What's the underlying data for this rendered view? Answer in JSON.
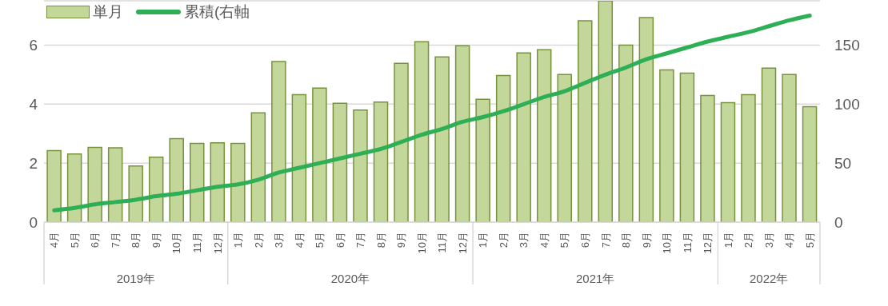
{
  "chart_data": {
    "type": "bar",
    "categories": [
      "4月",
      "5月",
      "6月",
      "7月",
      "8月",
      "9月",
      "10月",
      "11月",
      "12月",
      "1月",
      "2月",
      "3月",
      "4月",
      "5月",
      "6月",
      "7月",
      "8月",
      "9月",
      "10月",
      "11月",
      "12月",
      "1月",
      "2月",
      "3月",
      "4月",
      "5月",
      "6月",
      "7月",
      "8月",
      "9月",
      "10月",
      "11月",
      "12月",
      "1月",
      "2月",
      "3月",
      "4月",
      "5月"
    ],
    "series": [
      {
        "name": "単月",
        "color": "#c4d79b",
        "values": [
          2.42,
          2.31,
          2.53,
          2.52,
          1.9,
          2.2,
          2.83,
          2.67,
          2.69,
          2.67,
          3.7,
          5.44,
          4.32,
          4.54,
          4.03,
          3.8,
          4.07,
          5.38,
          6.11,
          5.6,
          5.98,
          4.16,
          4.97,
          5.73,
          5.84,
          5.0,
          6.82,
          7.5,
          6.0,
          6.93,
          5.16,
          5.05,
          4.29,
          4.05,
          4.32,
          5.22,
          5.0,
          3.91
        ]
      },
      {
        "name": "累積(右軸",
        "type": "line",
        "axis": "y2",
        "color": "#2eaf55",
        "values": [
          10,
          12,
          15,
          17,
          19,
          22,
          24,
          27,
          30,
          32,
          36,
          42,
          46,
          50,
          54,
          58,
          62,
          68,
          74,
          79,
          85,
          89,
          94,
          100,
          106,
          111,
          118,
          125,
          131,
          138,
          143,
          148,
          153,
          157,
          161,
          166,
          171,
          175
        ]
      }
    ],
    "annotations": [
      "2019年",
      "2020年",
      "2021年",
      "2022年"
    ],
    "ylim": [
      0,
      7.5
    ],
    "yticks": [
      0,
      2,
      4,
      6
    ],
    "y2lim": [
      0,
      187.5
    ],
    "y2ticks": [
      0,
      50,
      100,
      150
    ],
    "grid": "y",
    "legend": "top left"
  }
}
